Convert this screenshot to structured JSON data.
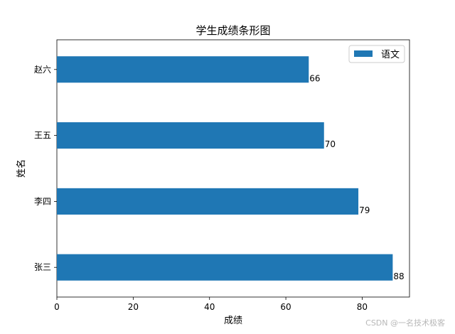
{
  "chart_data": {
    "type": "bar",
    "orientation": "horizontal",
    "title": "学生成绩条形图",
    "xlabel": "成绩",
    "ylabel": "姓名",
    "categories": [
      "张三",
      "李四",
      "王五",
      "赵六"
    ],
    "series": [
      {
        "name": "语文",
        "values": [
          88,
          79,
          70,
          66
        ],
        "color": "#1f77b4"
      }
    ],
    "xlim": [
      0,
      92.4
    ],
    "xticks": [
      0,
      20,
      40,
      60,
      80
    ],
    "grid": false,
    "legend_position": "top-right",
    "data_labels": true
  },
  "watermark": "CSDN @一名技术极客"
}
